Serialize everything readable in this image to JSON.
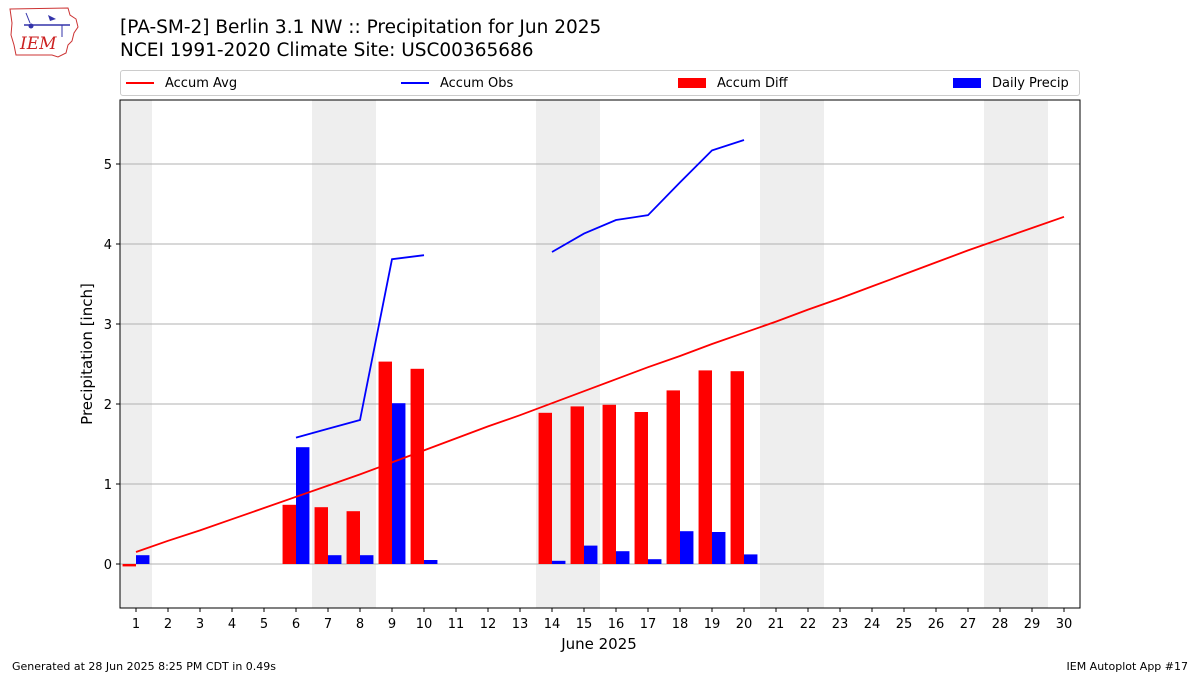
{
  "header": {
    "title_line1": "[PA-SM-2] Berlin 3.1 NW :: Precipitation for Jun 2025",
    "title_line2": "NCEI 1991-2020 Climate Site: USC00365686",
    "logo_text": "IEM"
  },
  "legend": {
    "accum_avg": "Accum Avg",
    "accum_obs": "Accum Obs",
    "accum_diff": "Accum Diff",
    "daily_precip": "Daily Precip",
    "position": "top"
  },
  "colors": {
    "accum_avg": "#ff0000",
    "accum_obs": "#0000ff",
    "accum_diff": "#ff0000",
    "daily_precip": "#0000ff",
    "weekend_shade": "#eeeeee",
    "grid": "#b0b0b0"
  },
  "footer": {
    "generated": "Generated at 28 Jun 2025 8:25 PM CDT in 0.49s",
    "app": "IEM Autoplot App #17"
  },
  "chart_data": {
    "type": "bar",
    "xlabel": "June 2025",
    "ylabel": "Precipitation [inch]",
    "x": [
      1,
      2,
      3,
      4,
      5,
      6,
      7,
      8,
      9,
      10,
      11,
      12,
      13,
      14,
      15,
      16,
      17,
      18,
      19,
      20,
      21,
      22,
      23,
      24,
      25,
      26,
      27,
      28,
      29,
      30
    ],
    "xlim": [
      0.5,
      30.5
    ],
    "ylim": [
      -0.55,
      5.8
    ],
    "yticks": [
      0,
      1,
      2,
      3,
      4,
      5
    ],
    "grid": "horizontal",
    "shaded_days": [
      1,
      7,
      8,
      14,
      15,
      21,
      22,
      28,
      29
    ],
    "series": [
      {
        "name": "Accum Avg",
        "kind": "line",
        "x": [
          1,
          2,
          3,
          4,
          5,
          6,
          7,
          8,
          9,
          10,
          11,
          12,
          13,
          14,
          15,
          16,
          17,
          18,
          19,
          20,
          21,
          22,
          23,
          24,
          25,
          26,
          27,
          28,
          29,
          30
        ],
        "values": [
          0.15,
          0.29,
          0.42,
          0.56,
          0.7,
          0.84,
          0.98,
          1.12,
          1.27,
          1.42,
          1.57,
          1.72,
          1.86,
          2.01,
          2.16,
          2.31,
          2.46,
          2.6,
          2.75,
          2.89,
          3.03,
          3.18,
          3.32,
          3.47,
          3.62,
          3.77,
          3.92,
          4.06,
          4.2,
          4.34
        ]
      },
      {
        "name": "Accum Obs",
        "kind": "line",
        "x": [
          6,
          7,
          8,
          9,
          10,
          null,
          14,
          15,
          16,
          17,
          18,
          19,
          20
        ],
        "values": [
          1.58,
          1.69,
          1.8,
          3.81,
          3.86,
          null,
          3.9,
          4.13,
          4.3,
          4.36,
          4.77,
          5.17,
          5.3
        ]
      },
      {
        "name": "Accum Diff",
        "kind": "bar",
        "x": [
          1,
          6,
          7,
          8,
          9,
          10,
          14,
          15,
          16,
          17,
          18,
          19,
          20
        ],
        "values": [
          -0.03,
          0.74,
          0.71,
          0.66,
          2.53,
          2.44,
          1.89,
          1.97,
          1.99,
          1.9,
          2.17,
          2.42,
          2.41
        ]
      },
      {
        "name": "Daily Precip",
        "kind": "bar",
        "x": [
          1,
          6,
          7,
          8,
          9,
          10,
          14,
          15,
          16,
          17,
          18,
          19,
          20
        ],
        "values": [
          0.11,
          1.46,
          0.11,
          0.11,
          2.01,
          0.05,
          0.04,
          0.23,
          0.16,
          0.06,
          0.41,
          0.4,
          0.12
        ]
      }
    ]
  }
}
